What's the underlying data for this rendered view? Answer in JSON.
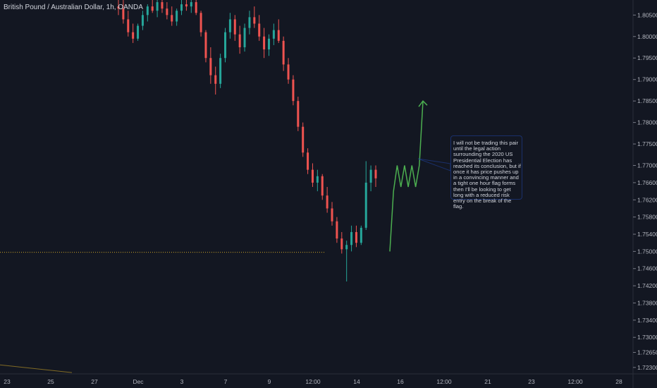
{
  "title": "British Pound / Australian Dollar, 1h, OANDA",
  "note": "I will not be trading this pair until the legal action surrounding the 2020 US Presidential Election has reached its conclusion, but if once it has price pushes up in a convincing manner and a tight one hour flag forms then I'll be looking to get long with a reduced risk entry on the break of the flag.",
  "colors": {
    "background": "#131722",
    "up": "#26a69a",
    "down": "#ef5350",
    "projection": "#4caf50",
    "level": "#c9a227"
  },
  "chart_data": {
    "type": "candlestick",
    "y_axis": {
      "position": "right",
      "ylim": [
        1.7215,
        1.8085
      ],
      "ticks": [
        "1.80500",
        "1.80000",
        "1.79500",
        "1.79000",
        "1.78500",
        "1.78000",
        "1.77500",
        "1.77000",
        "1.76600",
        "1.76200",
        "1.75800",
        "1.75400",
        "1.75000",
        "1.74600",
        "1.74200",
        "1.73800",
        "1.73400",
        "1.73000",
        "1.72650",
        "1.72300"
      ]
    },
    "x_axis": {
      "ticks": [
        "23",
        "25",
        "27",
        "Dec",
        "3",
        "7",
        "9",
        "12:00",
        "14",
        "16",
        "12:00",
        "21",
        "23",
        "12:00",
        "28"
      ]
    },
    "grid": false,
    "horizontal_level": {
      "value": 1.7498,
      "style": "dotted"
    },
    "candles": [
      [
        1.807,
        1.809,
        1.805,
        1.8065
      ],
      [
        1.8065,
        1.8085,
        1.803,
        1.804
      ],
      [
        1.804,
        1.806,
        1.8,
        1.801
      ],
      [
        1.801,
        1.803,
        1.7985,
        1.7995
      ],
      [
        1.7995,
        1.803,
        1.799,
        1.8025
      ],
      [
        1.8025,
        1.806,
        1.8015,
        1.805
      ],
      [
        1.805,
        1.8075,
        1.8035,
        1.807
      ],
      [
        1.807,
        1.809,
        1.8055,
        1.806
      ],
      [
        1.806,
        1.8085,
        1.8045,
        1.808
      ],
      [
        1.808,
        1.809,
        1.8055,
        1.8065
      ],
      [
        1.8065,
        1.808,
        1.804,
        1.805
      ],
      [
        1.805,
        1.807,
        1.8025,
        1.8035
      ],
      [
        1.8035,
        1.8065,
        1.8025,
        1.806
      ],
      [
        1.806,
        1.8085,
        1.805,
        1.8075
      ],
      [
        1.8075,
        1.809,
        1.806,
        1.807
      ],
      [
        1.807,
        1.809,
        1.8055,
        1.808
      ],
      [
        1.808,
        1.809,
        1.805,
        1.8055
      ],
      [
        1.8055,
        1.806,
        1.8,
        1.801
      ],
      [
        1.801,
        1.8015,
        1.794,
        1.795
      ],
      [
        1.795,
        1.7975,
        1.789,
        1.791
      ],
      [
        1.791,
        1.793,
        1.7865,
        1.789
      ],
      [
        1.789,
        1.796,
        1.788,
        1.795
      ],
      [
        1.795,
        1.802,
        1.794,
        1.801
      ],
      [
        1.801,
        1.8055,
        1.7995,
        1.804
      ],
      [
        1.804,
        1.805,
        1.799,
        1.8005
      ],
      [
        1.8005,
        1.8025,
        1.796,
        1.7975
      ],
      [
        1.7975,
        1.803,
        1.7965,
        1.802
      ],
      [
        1.802,
        1.806,
        1.8005,
        1.8045
      ],
      [
        1.8045,
        1.807,
        1.802,
        1.803
      ],
      [
        1.803,
        1.805,
        1.799,
        1.8
      ],
      [
        1.8,
        1.802,
        1.795,
        1.797
      ],
      [
        1.797,
        1.8005,
        1.7955,
        1.7995
      ],
      [
        1.7995,
        1.803,
        1.798,
        1.8015
      ],
      [
        1.8015,
        1.804,
        1.7985,
        1.799
      ],
      [
        1.799,
        1.8,
        1.792,
        1.7935
      ],
      [
        1.7935,
        1.795,
        1.789,
        1.79
      ],
      [
        1.79,
        1.791,
        1.784,
        1.785
      ],
      [
        1.785,
        1.786,
        1.778,
        1.779
      ],
      [
        1.779,
        1.78,
        1.772,
        1.773
      ],
      [
        1.773,
        1.774,
        1.768,
        1.769
      ],
      [
        1.769,
        1.7705,
        1.765,
        1.766
      ],
      [
        1.766,
        1.769,
        1.764,
        1.7675
      ],
      [
        1.7675,
        1.768,
        1.762,
        1.763
      ],
      [
        1.763,
        1.765,
        1.759,
        1.76
      ],
      [
        1.76,
        1.7615,
        1.756,
        1.757
      ],
      [
        1.757,
        1.758,
        1.752,
        1.753
      ],
      [
        1.753,
        1.7545,
        1.7495,
        1.7505
      ],
      [
        1.7505,
        1.7525,
        1.743,
        1.7515
      ],
      [
        1.7515,
        1.756,
        1.75,
        1.7545
      ],
      [
        1.7545,
        1.756,
        1.751,
        1.752
      ],
      [
        1.752,
        1.756,
        1.7515,
        1.7555
      ],
      [
        1.7555,
        1.771,
        1.755,
        1.766
      ],
      [
        1.766,
        1.77,
        1.764,
        1.769
      ],
      [
        1.769,
        1.77,
        1.765,
        1.767
      ]
    ],
    "projection": [
      [
        1.75,
        1.764,
        1.77,
        1.765,
        1.77,
        1.765,
        1.77,
        1.765,
        1.77,
        1.785
      ]
    ]
  }
}
